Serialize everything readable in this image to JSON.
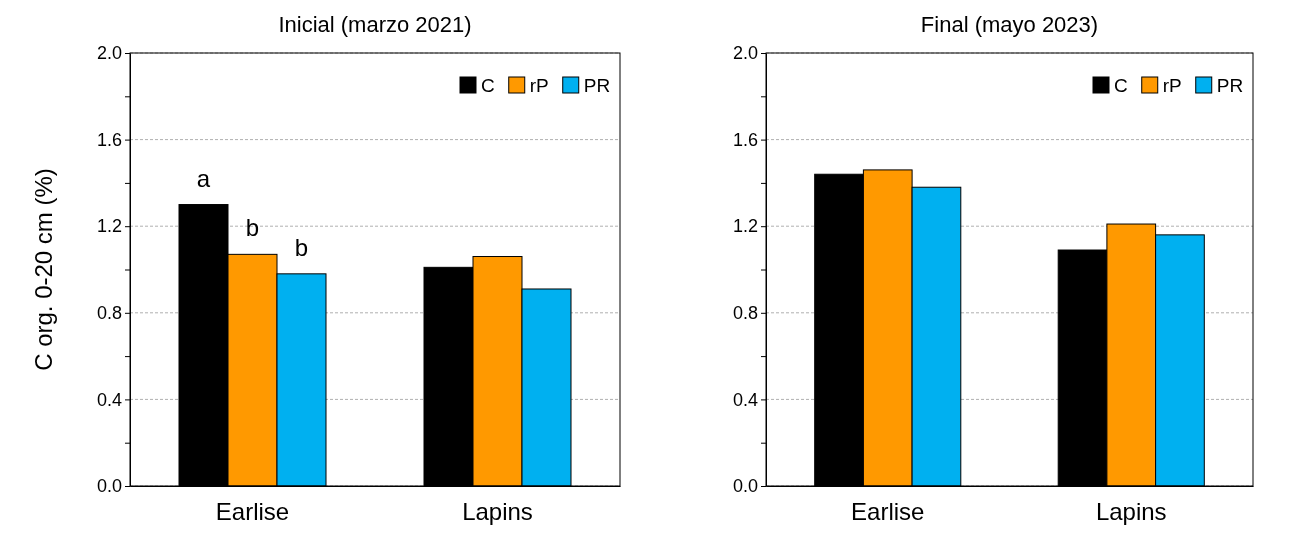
{
  "chart_data": [
    {
      "type": "bar",
      "title": "Inicial (marzo 2021)",
      "ylabel": "C org. 0-20 cm (%)",
      "categories": [
        "Earlise",
        "Lapins"
      ],
      "series": [
        {
          "name": "C",
          "color": "#000000",
          "values": [
            1.3,
            1.01
          ]
        },
        {
          "name": "rP",
          "color": "#ff9900",
          "values": [
            1.07,
            1.06
          ]
        },
        {
          "name": "PR",
          "color": "#00b0f0",
          "values": [
            0.98,
            0.91
          ]
        }
      ],
      "ylim": [
        0,
        2.0
      ],
      "yticks": [
        {
          "value": 0,
          "label": "0.0"
        },
        {
          "value": 0.2,
          "label": null
        },
        {
          "value": 0.4,
          "label": "0.4"
        },
        {
          "value": 0.6,
          "label": null
        },
        {
          "value": 0.8,
          "label": "0.8"
        },
        {
          "value": 1.0,
          "label": null
        },
        {
          "value": 1.2,
          "label": "1.2"
        },
        {
          "value": 1.4,
          "label": null
        },
        {
          "value": 1.6,
          "label": "1.6"
        },
        {
          "value": 1.8,
          "label": null
        },
        {
          "value": 2.0,
          "label": "2.0"
        }
      ],
      "grid": "y",
      "legend": "top right",
      "annotations": [
        "a",
        "b",
        "b"
      ]
    },
    {
      "type": "bar",
      "title": "Final (mayo 2023)",
      "categories": [
        "Earlise",
        "Lapins"
      ],
      "series": [
        {
          "name": "C",
          "color": "#000000",
          "values": [
            1.44,
            1.09
          ]
        },
        {
          "name": "rP",
          "color": "#ff9900",
          "values": [
            1.46,
            1.21
          ]
        },
        {
          "name": "PR",
          "color": "#00b0f0",
          "values": [
            1.38,
            1.16
          ]
        }
      ],
      "ylim": [
        0,
        2.0
      ],
      "yticks": [
        {
          "value": 0,
          "label": "0.0"
        },
        {
          "value": 0.2,
          "label": null
        },
        {
          "value": 0.4,
          "label": "0.4"
        },
        {
          "value": 0.6,
          "label": null
        },
        {
          "value": 0.8,
          "label": "0.8"
        },
        {
          "value": 1.0,
          "label": null
        },
        {
          "value": 1.2,
          "label": "1.2"
        },
        {
          "value": 1.4,
          "label": null
        },
        {
          "value": 1.6,
          "label": "1.6"
        },
        {
          "value": 1.8,
          "label": null
        },
        {
          "value": 2.0,
          "label": "2.0"
        }
      ],
      "grid": "y",
      "legend": "top right"
    }
  ]
}
